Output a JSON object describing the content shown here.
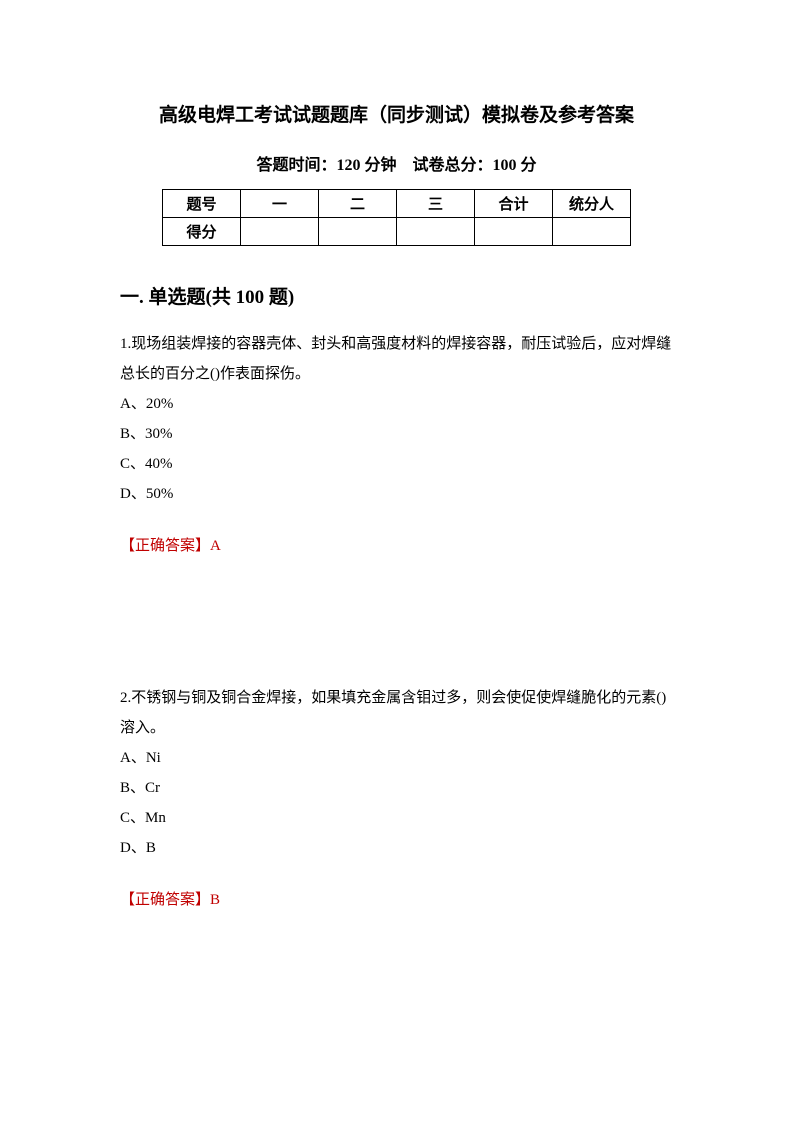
{
  "page": {
    "title": "高级电焊工考试试题题库（同步测试）模拟卷及参考答案",
    "subtitle": "答题时间：120 分钟 试卷总分：100 分",
    "background_color": "#ffffff",
    "text_color": "#000000",
    "answer_color": "#c00000"
  },
  "score_table": {
    "header_row": [
      "题号",
      "一",
      "二",
      "三",
      "合计",
      "统分人"
    ],
    "score_label": "得分"
  },
  "section": {
    "title": "一. 单选题(共 100 题)"
  },
  "questions": [
    {
      "number": "1.",
      "text": "现场组装焊接的容器壳体、封头和高强度材料的焊接容器，耐压试验后，应对焊缝总长的百分之()作表面探伤。",
      "options": [
        "A、20%",
        "B、30%",
        "C、40%",
        "D、50%"
      ],
      "answer_label": "【正确答案】",
      "answer_value": "A"
    },
    {
      "number": "2.",
      "text": "不锈钢与铜及铜合金焊接，如果填充金属含钼过多，则会使促使焊缝脆化的元素()溶入。",
      "options": [
        "A、Ni",
        "B、Cr",
        "C、Mn",
        "D、B"
      ],
      "answer_label": "【正确答案】",
      "answer_value": "B"
    }
  ]
}
